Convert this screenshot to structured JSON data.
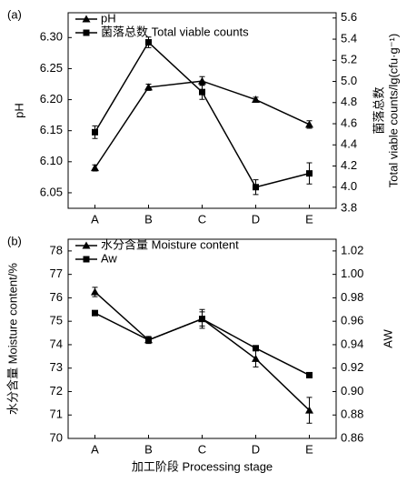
{
  "chart_data": [
    {
      "type": "line",
      "title": "(a)",
      "ylabel": "pH",
      "y2label": [
        "菌落总数",
        "Total viable counts/lg(cfu·g⁻¹)"
      ],
      "categories": [
        "A",
        "B",
        "C",
        "D",
        "E"
      ],
      "ylim": [
        6.025,
        6.34
      ],
      "yticks": [
        {
          "value": 6.05,
          "label": "6.05"
        },
        {
          "value": 6.1,
          "label": "6.10"
        },
        {
          "value": 6.15,
          "label": "6.15"
        },
        {
          "value": 6.2,
          "label": "6.20"
        },
        {
          "value": 6.25,
          "label": "6.25"
        },
        {
          "value": 6.3,
          "label": "6.30"
        }
      ],
      "y2lim": [
        3.8,
        5.65
      ],
      "y2ticks": [
        3.8,
        {
          "value": 4.0,
          "label": "4.0"
        },
        4.2,
        4.4,
        4.6,
        4.8,
        {
          "value": 5.0,
          "label": "5.0"
        },
        5.2,
        5.4,
        5.6
      ],
      "legend": "top-left",
      "series": [
        {
          "name": "pH",
          "marker": "triangle",
          "color": "#000000",
          "values": [
            6.09,
            6.22,
            6.23,
            6.2,
            6.16
          ],
          "errors": [
            0.005,
            0.005,
            0.007,
            0.004,
            0.006
          ]
        },
        {
          "name": "菌落总数 Total viable counts",
          "marker": "square",
          "color": "#000000",
          "axis": "y2",
          "values": [
            4.52,
            5.37,
            4.9,
            4.0,
            4.13
          ],
          "errors": [
            0.06,
            0.05,
            0.07,
            0.07,
            0.1
          ]
        }
      ]
    },
    {
      "type": "line",
      "title": "(b)",
      "xlabel": "加工阶段 Processing stage",
      "ylabel": "水分含量 Moisture content/%",
      "y2label": [
        "AW"
      ],
      "categories": [
        "A",
        "B",
        "C",
        "D",
        "E"
      ],
      "ylim": [
        70,
        78.5
      ],
      "yticks": [
        70,
        71,
        72,
        73,
        74,
        75,
        76,
        77,
        78
      ],
      "y2lim": [
        0.86,
        1.03
      ],
      "y2ticks": [
        0.86,
        0.88,
        {
          "value": 0.9,
          "label": "0.90"
        },
        0.92,
        0.94,
        0.96,
        0.98,
        {
          "value": 1.0,
          "label": "1.00"
        },
        1.02
      ],
      "legend": "top-left",
      "series": [
        {
          "name": "水分含量 Moisture content",
          "marker": "triangle",
          "color": "#000000",
          "values": [
            76.25,
            74.2,
            75.1,
            73.4,
            71.2
          ],
          "errors": [
            0.2,
            0.15,
            0.4,
            0.35,
            0.55
          ]
        },
        {
          "name": "Aw",
          "marker": "square",
          "color": "#000000",
          "axis": "y2",
          "values": [
            0.967,
            0.944,
            0.962,
            0.937,
            0.914
          ],
          "errors": [
            0.002,
            0.002,
            0.006,
            0.002,
            0.002
          ]
        }
      ]
    }
  ]
}
